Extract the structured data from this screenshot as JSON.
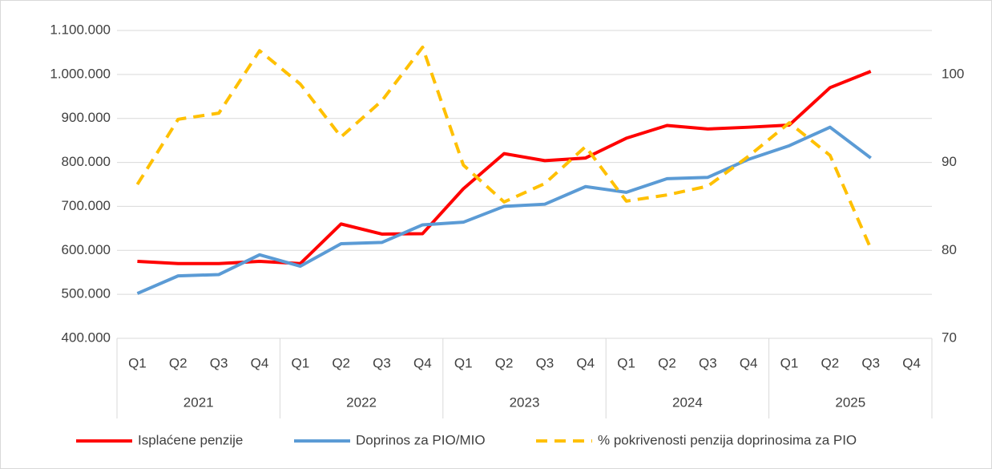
{
  "chart_data": {
    "type": "line",
    "categories": [
      "Q1",
      "Q2",
      "Q3",
      "Q4",
      "Q1",
      "Q2",
      "Q3",
      "Q4",
      "Q1",
      "Q2",
      "Q3",
      "Q4",
      "Q1",
      "Q2",
      "Q3",
      "Q4",
      "Q1",
      "Q2",
      "Q3",
      "Q4"
    ],
    "category_groups": [
      "2021",
      "2022",
      "2023",
      "2024",
      "2025"
    ],
    "series": [
      {
        "name": "Isplaćene penzije",
        "color": "#ff0000",
        "axis": "y",
        "values": [
          575000,
          570000,
          570000,
          575000,
          570000,
          660000,
          637000,
          638000,
          740000,
          820000,
          804000,
          810000,
          855000,
          884000,
          876000,
          880000,
          885000,
          970000,
          1007000,
          null
        ]
      },
      {
        "name": "Doprinos za PIO/MIO",
        "color": "#5b9bd5",
        "axis": "y",
        "values": [
          502000,
          542000,
          545000,
          590000,
          564000,
          615000,
          618000,
          658000,
          664000,
          700000,
          705000,
          745000,
          732000,
          763000,
          766000,
          807000,
          838000,
          880000,
          810000,
          null
        ]
      },
      {
        "name": "% pokrivenosti penzija doprinosima za PIO",
        "color": "#ffc000",
        "axis": "y2",
        "dashed": true,
        "values": [
          87.5,
          94.9,
          95.6,
          102.7,
          98.9,
          92.9,
          97,
          103.1,
          89.7,
          85.5,
          87.6,
          91.8,
          85.6,
          86.3,
          87.3,
          90.7,
          94.5,
          90.8,
          80.2,
          null
        ]
      }
    ],
    "ylim": [
      400000,
      1100000
    ],
    "yticks": [
      {
        "value": 400000,
        "label": "400.000"
      },
      {
        "value": 500000,
        "label": "500.000"
      },
      {
        "value": 600000,
        "label": "600.000"
      },
      {
        "value": 700000,
        "label": "700.000"
      },
      {
        "value": 800000,
        "label": "800.000"
      },
      {
        "value": 900000,
        "label": "900.000"
      },
      {
        "value": 1000000,
        "label": "1.000.000"
      },
      {
        "value": 1100000,
        "label": "1.100.000"
      }
    ],
    "y2lim": [
      70,
      105
    ],
    "y2ticks": [
      70,
      80,
      90,
      100
    ],
    "grid": true,
    "legend": "bottom"
  }
}
